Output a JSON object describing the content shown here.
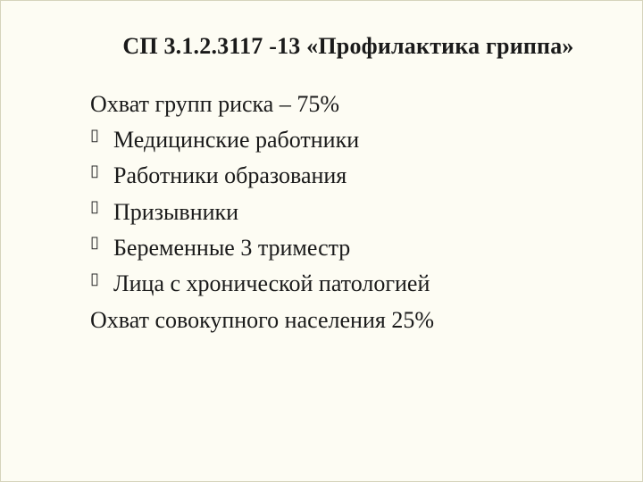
{
  "slide": {
    "background_color": "#fdfcf3",
    "border_color": "#d6d4bc",
    "text_color": "#1a1a1a",
    "font_family": "Times New Roman"
  },
  "title": {
    "text": "СП 3.1.2.3117 -13 «Профилактика гриппа»",
    "fontsize": 26,
    "weight": "bold",
    "align": "center"
  },
  "coverage_line": "Охват групп риска – 75%",
  "bullets": [
    "Медицинские работники",
    "Работники образования",
    "Призывники",
    "Беременные 3 триместр",
    "Лица с хронической патологией"
  ],
  "footer_line": "Охват совокупного населения 25%",
  "body_style": {
    "fontsize": 26,
    "line_height": 1.55,
    "bullet_glyph": "hollow-rectangle",
    "bullet_color": "#2b2b2b"
  }
}
